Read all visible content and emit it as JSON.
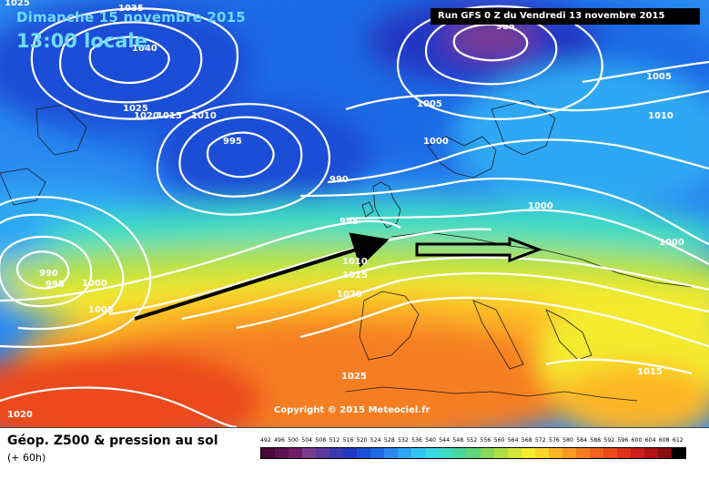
{
  "header": {
    "date_label": "Dimanche 15 novembre 2015",
    "time_label": "13:00 locale",
    "run_label": "Run GFS 0 Z du Vendredi 13 novembre 2015"
  },
  "map": {
    "copyright": "Copyright © 2015 Meteociel.fr",
    "isobar_labels": [
      {
        "text": "1025",
        "id": "isobar-1025-top-left"
      },
      {
        "text": "1035",
        "id": "isobar-1035"
      },
      {
        "text": "1040",
        "id": "isobar-1040"
      },
      {
        "text": "1025",
        "id": "isobar-1025-greenland"
      },
      {
        "text": "1020",
        "id": "isobar-1020-greenland"
      },
      {
        "text": "1015",
        "id": "isobar-1015-greenland"
      },
      {
        "text": "1010",
        "id": "isobar-1010-atlantic"
      },
      {
        "text": "995",
        "id": "isobar-995-atlantic"
      },
      {
        "text": "985",
        "id": "isobar-985-norway"
      },
      {
        "text": "1005",
        "id": "isobar-1005-north"
      },
      {
        "text": "1000",
        "id": "isobar-1000-scandinavia"
      },
      {
        "text": "990",
        "id": "isobar-990-atlantic"
      },
      {
        "text": "1005",
        "id": "isobar-1005-ne"
      },
      {
        "text": "1010",
        "id": "isobar-1010-ne"
      },
      {
        "text": "1000",
        "id": "isobar-1000-baltic"
      },
      {
        "text": "1000",
        "id": "isobar-1000-east"
      },
      {
        "text": "995",
        "id": "isobar-995-uk"
      },
      {
        "text": "1010",
        "id": "isobar-1010-biscay"
      },
      {
        "text": "1015",
        "id": "isobar-1015-biscay"
      },
      {
        "text": "1020",
        "id": "isobar-1020-iberia"
      },
      {
        "text": "990",
        "id": "isobar-990-west-low"
      },
      {
        "text": "995",
        "id": "isobar-995-west-low"
      },
      {
        "text": "1000",
        "id": "isobar-1000-west"
      },
      {
        "text": "1005",
        "id": "isobar-1005-west"
      },
      {
        "text": "1025",
        "id": "isobar-1025-africa"
      },
      {
        "text": "1015",
        "id": "isobar-1015-balkans"
      },
      {
        "text": "1020",
        "id": "isobar-1020-sw"
      }
    ],
    "arrows": [
      {
        "id": "jet-arrow-atlantic",
        "style": "solid"
      },
      {
        "id": "jet-arrow-europe",
        "style": "outline"
      }
    ]
  },
  "legend": {
    "title": "Géop. Z500 & pression au sol",
    "subtitle": "(+ 60h)",
    "scale": [
      {
        "label": "492",
        "color": "#4a0a3a"
      },
      {
        "label": "496",
        "color": "#5c1250"
      },
      {
        "label": "500",
        "color": "#701c6a"
      },
      {
        "label": "504",
        "color": "#7a3b8c"
      },
      {
        "label": "508",
        "color": "#5a3aa0"
      },
      {
        "label": "512",
        "color": "#3a3ab0"
      },
      {
        "label": "516",
        "color": "#2238c4"
      },
      {
        "label": "520",
        "color": "#1a4ed6"
      },
      {
        "label": "524",
        "color": "#1e6ae6"
      },
      {
        "label": "528",
        "color": "#2a8af0"
      },
      {
        "label": "532",
        "color": "#2ea8f4"
      },
      {
        "label": "536",
        "color": "#32c4f2"
      },
      {
        "label": "540",
        "color": "#38d8e6"
      },
      {
        "label": "544",
        "color": "#3edcc4"
      },
      {
        "label": "548",
        "color": "#46d89e"
      },
      {
        "label": "552",
        "color": "#62d67a"
      },
      {
        "label": "556",
        "color": "#86da5a"
      },
      {
        "label": "560",
        "color": "#aee044"
      },
      {
        "label": "564",
        "color": "#d4e63a"
      },
      {
        "label": "568",
        "color": "#f4ea2e"
      },
      {
        "label": "572",
        "color": "#fcd42a"
      },
      {
        "label": "576",
        "color": "#fcb626"
      },
      {
        "label": "580",
        "color": "#fa9a22"
      },
      {
        "label": "584",
        "color": "#f67e20"
      },
      {
        "label": "588",
        "color": "#f2621e"
      },
      {
        "label": "592",
        "color": "#ec481c"
      },
      {
        "label": "596",
        "color": "#e0321a"
      },
      {
        "label": "600",
        "color": "#cc2018"
      },
      {
        "label": "604",
        "color": "#b01414"
      },
      {
        "label": "608",
        "color": "#8a0c10"
      },
      {
        "label": "612",
        "color": "#000000"
      }
    ]
  }
}
